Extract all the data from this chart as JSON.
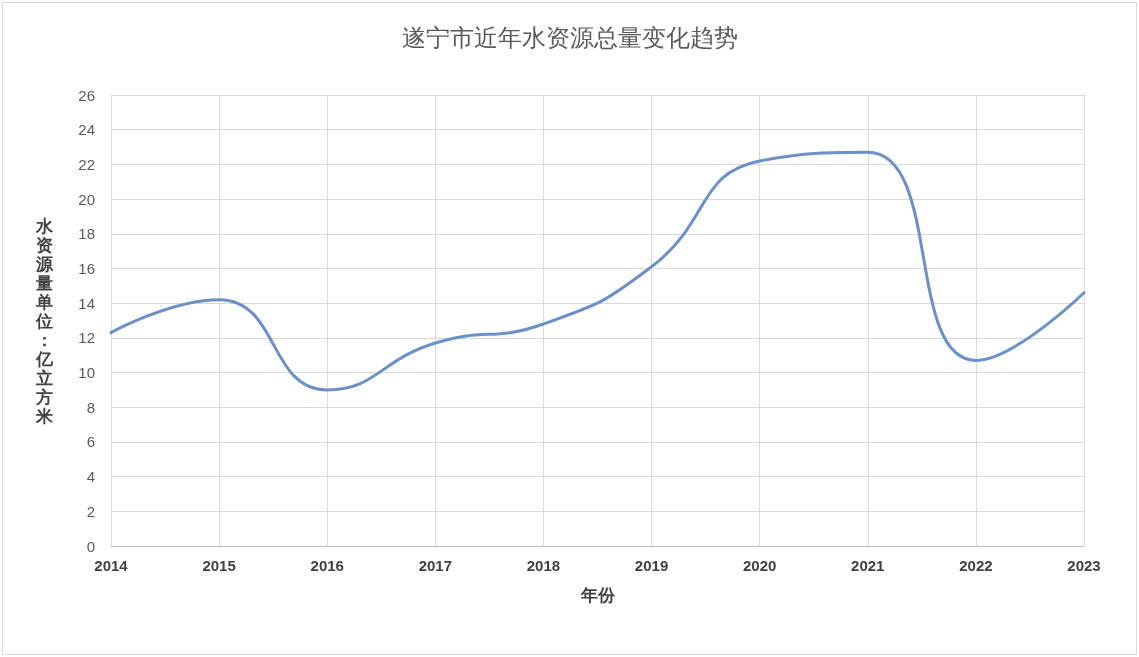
{
  "chart_data": {
    "type": "line",
    "title": "遂宁市近年水资源总量变化趋势",
    "xlabel": "年份",
    "ylabel": "水资源量单位：亿立方米",
    "categories": [
      "2014",
      "2015",
      "2016",
      "2017",
      "2018",
      "2019",
      "2020",
      "2021",
      "2022",
      "2023"
    ],
    "series": [
      {
        "color": "#6b8fc9",
        "values": [
          12.3,
          14.2,
          9.0,
          11.7,
          12.8,
          16.1,
          22.2,
          22.7,
          10.7,
          14.6
        ]
      }
    ],
    "ylim": [
      0,
      26
    ],
    "yticks": [
      0,
      2,
      4,
      6,
      8,
      10,
      12,
      14,
      16,
      18,
      20,
      22,
      24,
      26
    ],
    "grid": true,
    "marker": "none",
    "line_style": "solid"
  }
}
